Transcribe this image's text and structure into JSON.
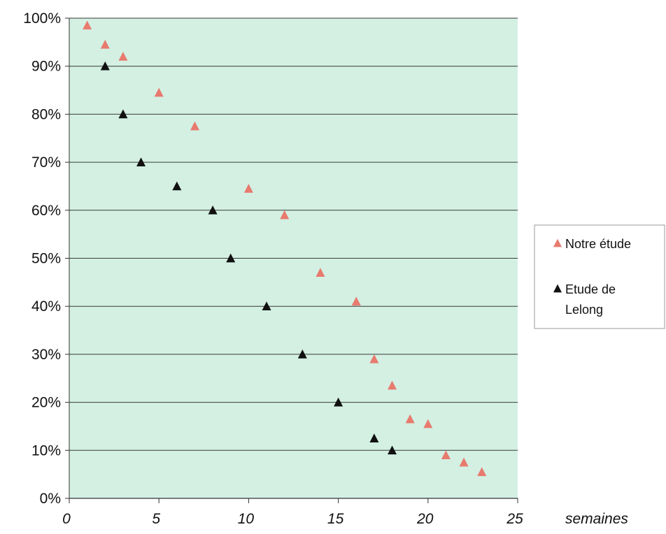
{
  "chart_data": {
    "type": "scatter",
    "title": "",
    "xlabel": "semaines",
    "ylabel": "",
    "xlim": [
      0,
      25
    ],
    "ylim": [
      0,
      100
    ],
    "x_ticks": [
      "0",
      "5",
      "10",
      "15",
      "20",
      "25"
    ],
    "y_ticks": [
      "0%",
      "10%",
      "20%",
      "30%",
      "40%",
      "50%",
      "60%",
      "70%",
      "80%",
      "90%",
      "100%"
    ],
    "grid": "horizontal",
    "legend_position": "right",
    "plot_background": "#d3f0e3",
    "series": [
      {
        "name": "Notre étude",
        "color": "#e87a6e",
        "marker": "triangle",
        "x": [
          1,
          2,
          3,
          5,
          7,
          10,
          12,
          14,
          16,
          17,
          18,
          19,
          20,
          21,
          22,
          23
        ],
        "y": [
          98.5,
          94.5,
          92,
          84.5,
          77.5,
          64.5,
          59,
          47,
          41,
          29,
          23.5,
          16.5,
          15.5,
          9,
          7.5,
          5.5
        ]
      },
      {
        "name": "Etude de Lelong",
        "color": "#111111",
        "marker": "triangle",
        "x": [
          2,
          3,
          4,
          6,
          8,
          9,
          11,
          13,
          15,
          17,
          18
        ],
        "y": [
          90,
          80,
          70,
          65,
          60,
          50,
          40,
          30,
          20,
          12.5,
          10
        ]
      }
    ],
    "legend": [
      {
        "lines": [
          "Notre étude"
        ],
        "color": "#e87a6e"
      },
      {
        "lines": [
          "Etude de",
          "Lelong"
        ],
        "color": "#111111"
      }
    ]
  }
}
